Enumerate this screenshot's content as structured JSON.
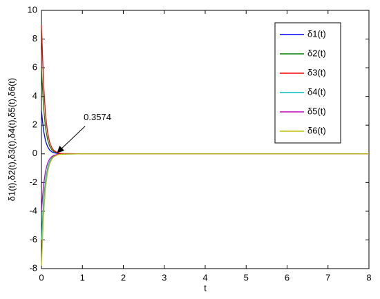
{
  "chart_data": {
    "type": "line",
    "xlabel": "t",
    "ylabel": "δ1(t),δ2(t),δ3(t),δ4(t),δ5(t),δ6(t)",
    "annotation": "0.3574",
    "annotation_x": 0.3574,
    "x": [
      0,
      0.05,
      0.1,
      0.15,
      0.2,
      0.25,
      0.3,
      0.4,
      0.5,
      1,
      8
    ],
    "series": [
      {
        "name": "δ1(t)",
        "color": "#0000ff",
        "values": [
          3,
          1.65,
          0.9,
          0.5,
          0.27,
          0.15,
          0.08,
          0.02,
          0.01,
          0,
          0
        ]
      },
      {
        "name": "δ2(t)",
        "color": "#008000",
        "values": [
          6,
          3.3,
          1.8,
          0.99,
          0.54,
          0.3,
          0.16,
          0.05,
          0.02,
          0,
          0
        ]
      },
      {
        "name": "δ3(t)",
        "color": "#ff0000",
        "values": [
          9,
          4.95,
          2.7,
          1.49,
          0.81,
          0.45,
          0.24,
          0.07,
          0.02,
          0,
          0
        ]
      },
      {
        "name": "δ4(t)",
        "color": "#00bfbf",
        "values": [
          -6,
          -3.3,
          -1.8,
          -0.99,
          -0.54,
          -0.3,
          -0.16,
          -0.05,
          -0.02,
          0,
          0
        ]
      },
      {
        "name": "δ5(t)",
        "color": "#bf00bf",
        "values": [
          -4,
          -2.2,
          -1.2,
          -0.66,
          -0.36,
          -0.2,
          -0.11,
          -0.03,
          -0.01,
          0,
          0
        ]
      },
      {
        "name": "δ6(t)",
        "color": "#bfbf00",
        "values": [
          -7.8,
          -4.29,
          -2.34,
          -1.29,
          -0.7,
          -0.39,
          -0.21,
          -0.06,
          -0.02,
          0,
          0
        ]
      }
    ],
    "xlim": [
      0,
      8
    ],
    "xticks": [
      0,
      1,
      2,
      3,
      4,
      5,
      6,
      7,
      8
    ],
    "ylim": [
      -8,
      10
    ],
    "yticks": [
      -8,
      -6,
      -4,
      -2,
      0,
      2,
      4,
      6,
      8,
      10
    ],
    "grid": false,
    "legend": "upper right"
  }
}
